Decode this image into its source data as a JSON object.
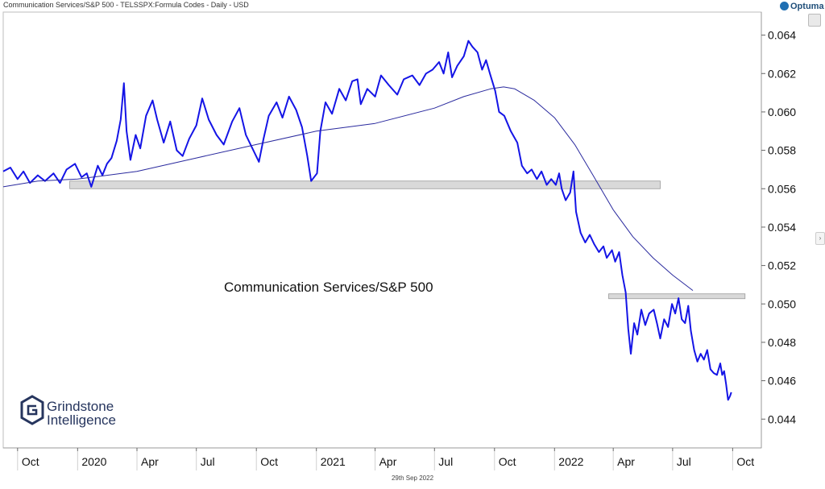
{
  "header": {
    "title": "Communication Services/S&P 500 - TELSSPX:Formula Codes - Daily - USD",
    "brand": "Optuma"
  },
  "footer": {
    "date": "29th Sep 2022"
  },
  "logo": {
    "line1": "Grindstone",
    "line2": "Intelligence",
    "icon": "hexagon-g-icon"
  },
  "colors": {
    "price_line": "#1414e6",
    "moving_average": "#2a2a9e",
    "zone_fill": "#d9d9d9",
    "zone_stroke": "#9a9a9a"
  },
  "chart_data": {
    "type": "line",
    "title": "Communication Services/S&P 500",
    "xlabel": "",
    "ylabel": "",
    "y_axis_side": "right",
    "ylim": [
      0.0425,
      0.0652
    ],
    "xlim": [
      "2019-09-09",
      "2022-11-14"
    ],
    "y_ticks": [
      0.064,
      0.062,
      0.06,
      0.058,
      0.056,
      0.054,
      0.052,
      0.05,
      0.048,
      0.046,
      0.044
    ],
    "x_ticks": [
      {
        "label": "Oct",
        "date": "2019-10-01"
      },
      {
        "label": "2020",
        "date": "2020-01-01"
      },
      {
        "label": "Apr",
        "date": "2020-04-01"
      },
      {
        "label": "Jul",
        "date": "2020-07-01"
      },
      {
        "label": "Oct",
        "date": "2020-10-01"
      },
      {
        "label": "2021",
        "date": "2021-01-01"
      },
      {
        "label": "Apr",
        "date": "2021-04-01"
      },
      {
        "label": "Jul",
        "date": "2021-07-01"
      },
      {
        "label": "Oct",
        "date": "2021-10-01"
      },
      {
        "label": "2022",
        "date": "2022-01-01"
      },
      {
        "label": "Apr",
        "date": "2022-04-01"
      },
      {
        "label": "Jul",
        "date": "2022-07-01"
      },
      {
        "label": "Oct",
        "date": "2022-10-01"
      }
    ],
    "grid": false,
    "legend": "none",
    "series": [
      {
        "values_name": "price",
        "points": [
          [
            "2019-09-09",
            0.0569
          ],
          [
            "2019-09-20",
            0.0571
          ],
          [
            "2019-10-01",
            0.0565
          ],
          [
            "2019-10-10",
            0.0569
          ],
          [
            "2019-10-20",
            0.0563
          ],
          [
            "2019-11-01",
            0.0567
          ],
          [
            "2019-11-12",
            0.0564
          ],
          [
            "2019-11-25",
            0.0568
          ],
          [
            "2019-12-05",
            0.0563
          ],
          [
            "2019-12-15",
            0.057
          ],
          [
            "2019-12-28",
            0.0573
          ],
          [
            "2020-01-07",
            0.0566
          ],
          [
            "2020-01-15",
            0.0568
          ],
          [
            "2020-01-22",
            0.0561
          ],
          [
            "2020-02-01",
            0.0572
          ],
          [
            "2020-02-08",
            0.0567
          ],
          [
            "2020-02-15",
            0.0573
          ],
          [
            "2020-02-22",
            0.0576
          ],
          [
            "2020-03-01",
            0.0585
          ],
          [
            "2020-03-07",
            0.0596
          ],
          [
            "2020-03-12",
            0.0615
          ],
          [
            "2020-03-16",
            0.059
          ],
          [
            "2020-03-22",
            0.0575
          ],
          [
            "2020-03-30",
            0.0588
          ],
          [
            "2020-04-06",
            0.0581
          ],
          [
            "2020-04-15",
            0.0598
          ],
          [
            "2020-04-25",
            0.0606
          ],
          [
            "2020-05-02",
            0.0596
          ],
          [
            "2020-05-12",
            0.0584
          ],
          [
            "2020-05-22",
            0.0595
          ],
          [
            "2020-06-01",
            0.058
          ],
          [
            "2020-06-10",
            0.0577
          ],
          [
            "2020-06-20",
            0.0586
          ],
          [
            "2020-07-01",
            0.0593
          ],
          [
            "2020-07-10",
            0.0607
          ],
          [
            "2020-07-20",
            0.0596
          ],
          [
            "2020-08-01",
            0.0588
          ],
          [
            "2020-08-12",
            0.0583
          ],
          [
            "2020-08-25",
            0.0595
          ],
          [
            "2020-09-05",
            0.0602
          ],
          [
            "2020-09-15",
            0.0588
          ],
          [
            "2020-09-25",
            0.0581
          ],
          [
            "2020-10-05",
            0.0574
          ],
          [
            "2020-10-12",
            0.0586
          ],
          [
            "2020-10-20",
            0.0598
          ],
          [
            "2020-11-01",
            0.0605
          ],
          [
            "2020-11-10",
            0.0597
          ],
          [
            "2020-11-20",
            0.0608
          ],
          [
            "2020-12-01",
            0.0601
          ],
          [
            "2020-12-10",
            0.0592
          ],
          [
            "2020-12-18",
            0.0577
          ],
          [
            "2020-12-24",
            0.0564
          ],
          [
            "2021-01-02",
            0.0568
          ],
          [
            "2021-01-07",
            0.059
          ],
          [
            "2021-01-15",
            0.0605
          ],
          [
            "2021-01-25",
            0.0599
          ],
          [
            "2021-02-05",
            0.0612
          ],
          [
            "2021-02-15",
            0.0606
          ],
          [
            "2021-02-25",
            0.0616
          ],
          [
            "2021-03-05",
            0.0617
          ],
          [
            "2021-03-10",
            0.0604
          ],
          [
            "2021-03-20",
            0.0612
          ],
          [
            "2021-04-01",
            0.0608
          ],
          [
            "2021-04-10",
            0.0619
          ],
          [
            "2021-04-22",
            0.0614
          ],
          [
            "2021-05-05",
            0.0609
          ],
          [
            "2021-05-15",
            0.0617
          ],
          [
            "2021-05-28",
            0.0619
          ],
          [
            "2021-06-08",
            0.0614
          ],
          [
            "2021-06-18",
            0.062
          ],
          [
            "2021-06-28",
            0.0622
          ],
          [
            "2021-07-08",
            0.0626
          ],
          [
            "2021-07-15",
            0.062
          ],
          [
            "2021-07-22",
            0.0631
          ],
          [
            "2021-07-28",
            0.0618
          ],
          [
            "2021-08-05",
            0.0624
          ],
          [
            "2021-08-15",
            0.0629
          ],
          [
            "2021-08-22",
            0.0637
          ],
          [
            "2021-08-28",
            0.0634
          ],
          [
            "2021-09-05",
            0.0631
          ],
          [
            "2021-09-12",
            0.0622
          ],
          [
            "2021-09-18",
            0.0627
          ],
          [
            "2021-09-24",
            0.062
          ],
          [
            "2021-10-02",
            0.0611
          ],
          [
            "2021-10-08",
            0.06
          ],
          [
            "2021-10-16",
            0.0598
          ],
          [
            "2021-10-26",
            0.059
          ],
          [
            "2021-11-05",
            0.0584
          ],
          [
            "2021-11-12",
            0.0572
          ],
          [
            "2021-11-20",
            0.0568
          ],
          [
            "2021-11-27",
            0.057
          ],
          [
            "2021-12-05",
            0.0565
          ],
          [
            "2021-12-12",
            0.0569
          ],
          [
            "2021-12-20",
            0.0562
          ],
          [
            "2021-12-27",
            0.0565
          ],
          [
            "2022-01-03",
            0.0562
          ],
          [
            "2022-01-08",
            0.0568
          ],
          [
            "2022-01-12",
            0.056
          ],
          [
            "2022-01-18",
            0.0554
          ],
          [
            "2022-01-25",
            0.0558
          ],
          [
            "2022-01-30",
            0.0569
          ],
          [
            "2022-02-03",
            0.0548
          ],
          [
            "2022-02-10",
            0.0537
          ],
          [
            "2022-02-17",
            0.0532
          ],
          [
            "2022-02-24",
            0.0536
          ],
          [
            "2022-03-03",
            0.0531
          ],
          [
            "2022-03-10",
            0.0527
          ],
          [
            "2022-03-17",
            0.053
          ],
          [
            "2022-03-22",
            0.0524
          ],
          [
            "2022-03-30",
            0.0528
          ],
          [
            "2022-04-04",
            0.0522
          ],
          [
            "2022-04-10",
            0.0527
          ],
          [
            "2022-04-15",
            0.0515
          ],
          [
            "2022-04-20",
            0.0506
          ],
          [
            "2022-04-24",
            0.0487
          ],
          [
            "2022-04-28",
            0.0474
          ],
          [
            "2022-05-03",
            0.049
          ],
          [
            "2022-05-08",
            0.0484
          ],
          [
            "2022-05-14",
            0.0497
          ],
          [
            "2022-05-20",
            0.0489
          ],
          [
            "2022-05-26",
            0.0495
          ],
          [
            "2022-06-02",
            0.0497
          ],
          [
            "2022-06-07",
            0.049
          ],
          [
            "2022-06-12",
            0.0482
          ],
          [
            "2022-06-18",
            0.0492
          ],
          [
            "2022-06-24",
            0.0488
          ],
          [
            "2022-06-30",
            0.05
          ],
          [
            "2022-07-05",
            0.0495
          ],
          [
            "2022-07-10",
            0.0503
          ],
          [
            "2022-07-15",
            0.0492
          ],
          [
            "2022-07-20",
            0.049
          ],
          [
            "2022-07-25",
            0.0499
          ],
          [
            "2022-07-29",
            0.0486
          ],
          [
            "2022-08-03",
            0.0476
          ],
          [
            "2022-08-08",
            0.047
          ],
          [
            "2022-08-13",
            0.0474
          ],
          [
            "2022-08-18",
            0.0471
          ],
          [
            "2022-08-23",
            0.0476
          ],
          [
            "2022-08-28",
            0.0466
          ],
          [
            "2022-09-02",
            0.0464
          ],
          [
            "2022-09-07",
            0.0463
          ],
          [
            "2022-09-12",
            0.0469
          ],
          [
            "2022-09-15",
            0.0463
          ],
          [
            "2022-09-18",
            0.0465
          ],
          [
            "2022-09-21",
            0.0458
          ],
          [
            "2022-09-24",
            0.045
          ],
          [
            "2022-09-27",
            0.0452
          ],
          [
            "2022-09-29",
            0.0454
          ]
        ]
      },
      {
        "values_name": "moving_average",
        "points": [
          [
            "2019-09-09",
            0.0561
          ],
          [
            "2019-11-01",
            0.0564
          ],
          [
            "2020-01-01",
            0.0565
          ],
          [
            "2020-04-01",
            0.0569
          ],
          [
            "2020-07-01",
            0.0576
          ],
          [
            "2020-10-01",
            0.0583
          ],
          [
            "2021-01-01",
            0.059
          ],
          [
            "2021-04-01",
            0.0594
          ],
          [
            "2021-07-01",
            0.0602
          ],
          [
            "2021-08-15",
            0.0608
          ],
          [
            "2021-09-25",
            0.0612
          ],
          [
            "2021-10-15",
            0.0613
          ],
          [
            "2021-11-01",
            0.0612
          ],
          [
            "2021-12-01",
            0.0606
          ],
          [
            "2022-01-01",
            0.0597
          ],
          [
            "2022-02-01",
            0.0583
          ],
          [
            "2022-03-01",
            0.0567
          ],
          [
            "2022-04-01",
            0.0549
          ],
          [
            "2022-05-01",
            0.0535
          ],
          [
            "2022-06-01",
            0.0524
          ],
          [
            "2022-07-01",
            0.0515
          ],
          [
            "2022-08-01",
            0.0507
          ]
        ]
      }
    ],
    "zones": [
      {
        "x0": "2019-12-20",
        "x1": "2022-06-12",
        "y": 0.0562,
        "height": 0.0004
      },
      {
        "x0": "2022-03-25",
        "x1": "2022-10-20",
        "y": 0.0504,
        "height": 0.00025
      }
    ]
  }
}
